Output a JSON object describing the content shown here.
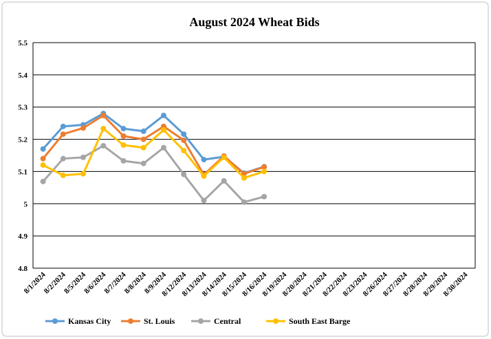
{
  "chart_data": {
    "type": "line",
    "title": "August 2024 Wheat Bids",
    "categories": [
      "8/1/2024",
      "8/2/2024",
      "8/5/2024",
      "8/6/2024",
      "8/7/2024",
      "8/8/2024",
      "8/9/2024",
      "8/12/2024",
      "8/13/2024",
      "8/14/2024",
      "8/15/2024",
      "8/16/2024",
      "8/19/2024",
      "8/20/2024",
      "8/21/2024",
      "8/22/2024",
      "8/23/2024",
      "8/26/2024",
      "8/27/2024",
      "8/28/2024",
      "8/29/2024",
      "8/30/2024"
    ],
    "series": [
      {
        "name": "Kansas City",
        "color": "#5b9bd5",
        "values": [
          5.17,
          5.24,
          5.245,
          5.28,
          5.233,
          5.225,
          5.274,
          5.216,
          5.137,
          5.146,
          5.095,
          5.115,
          null,
          null,
          null,
          null,
          null,
          null,
          null,
          null,
          null,
          null
        ]
      },
      {
        "name": "St. Louis",
        "color": "#ed7d31",
        "values": [
          5.14,
          5.216,
          5.235,
          5.274,
          5.21,
          5.2,
          5.24,
          5.197,
          5.09,
          5.148,
          5.093,
          5.114,
          null,
          null,
          null,
          null,
          null,
          null,
          null,
          null,
          null,
          null
        ]
      },
      {
        "name": "Central",
        "color": "#a5a5a5",
        "values": [
          5.069,
          5.14,
          5.144,
          5.18,
          5.133,
          5.125,
          5.174,
          5.091,
          5.01,
          5.071,
          5.005,
          5.022,
          null,
          null,
          null,
          null,
          null,
          null,
          null,
          null,
          null,
          null
        ]
      },
      {
        "name": "South East Barge",
        "color": "#ffc000",
        "values": [
          5.12,
          5.088,
          5.093,
          5.233,
          5.182,
          5.174,
          5.229,
          5.165,
          5.086,
          5.144,
          5.08,
          5.1,
          null,
          null,
          null,
          null,
          null,
          null,
          null,
          null,
          null,
          null
        ]
      }
    ],
    "ylim": [
      4.8,
      5.5
    ],
    "yticks": [
      4.8,
      4.9,
      5,
      5.1,
      5.2,
      5.3,
      5.4,
      5.5
    ],
    "grid": true,
    "legend": "bottom"
  }
}
